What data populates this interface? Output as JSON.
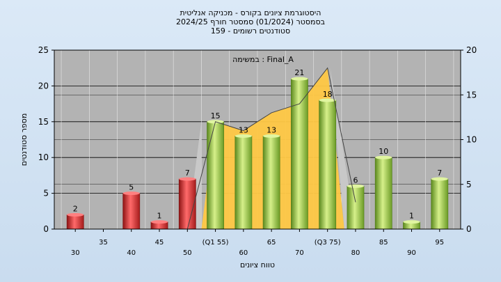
{
  "chart_data": {
    "type": "bar",
    "title": "היסטוגרמת ציונים בקורס - מכניקה אנליטית",
    "subtitle": "בסמסטר  (01/2024)  סמסטר חורף 2024/25",
    "subtitle2": "סטודנטים רשומים - 159",
    "annotation": "במשימה : Final_A",
    "xlabel": "טווח ציונים",
    "ylabel": "מספר סטודנטים",
    "ylim": [
      0,
      25
    ],
    "yticks": [
      "0",
      "5",
      "10",
      "15",
      "20",
      "25"
    ],
    "y2lim": [
      0,
      20
    ],
    "y2ticks": [
      "0",
      "5",
      "10",
      "15",
      "20"
    ],
    "grid": true,
    "categories": [
      "30",
      "35",
      "40",
      "45",
      "50",
      "(Q1 55)",
      "60",
      "65",
      "70",
      "(Q3 75)",
      "80",
      "85",
      "90",
      "95"
    ],
    "values": [
      2,
      0,
      5,
      1,
      7,
      15,
      13,
      13,
      21,
      18,
      6,
      10,
      1,
      7
    ],
    "bar_colors": [
      "#d83a3a",
      "#d83a3a",
      "#d83a3a",
      "#d83a3a",
      "#d83a3a",
      "#8cc63f",
      "#8cc63f",
      "#8cc63f",
      "#8cc63f",
      "#8cc63f",
      "#8cc63f",
      "#8cc63f",
      "#8cc63f",
      "#8cc63f"
    ],
    "area_series": {
      "values": [
        0,
        0,
        0,
        0,
        0,
        12,
        11,
        13,
        14,
        18,
        0,
        0,
        0,
        0
      ],
      "color": "#ffc845"
    },
    "line_series": {
      "values": [
        null,
        null,
        null,
        null,
        0,
        12,
        11,
        13,
        14,
        18,
        3,
        null,
        null,
        null
      ],
      "color": "#444444"
    }
  },
  "colors": {
    "plot_bg": "#b3b3b3",
    "red": "#d83a3a",
    "green": "#8cc63f",
    "area": "#ffc845"
  }
}
